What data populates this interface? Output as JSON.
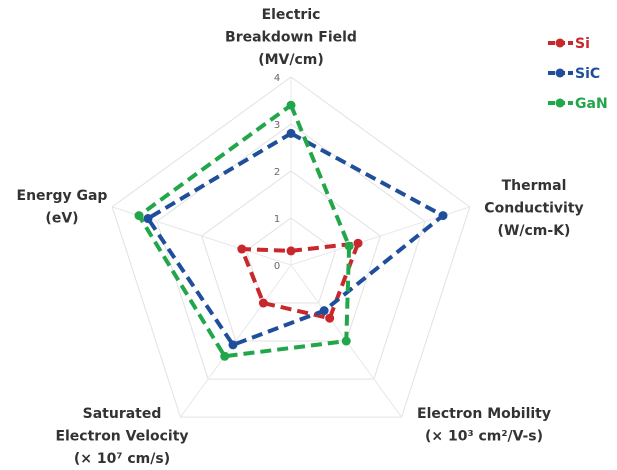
{
  "chart_data": {
    "type": "radar",
    "axes": [
      {
        "label": [
          "Electric",
          "Breakdown Field",
          "(MV/cm)"
        ]
      },
      {
        "label": [
          "Thermal",
          "Conductivity",
          "(W/cm-K)"
        ]
      },
      {
        "label": [
          "Electron Mobility",
          "(× 10³ cm²/V-s)"
        ]
      },
      {
        "label": [
          "Saturated",
          "Electron Velocity",
          "(× 10⁷ cm/s)"
        ]
      },
      {
        "label": [
          "Energy Gap",
          "(eV)"
        ]
      }
    ],
    "rlim": [
      0,
      4
    ],
    "ticks": [
      "0",
      "1",
      "2",
      "3",
      "4"
    ],
    "grid": true,
    "legend_position": "top-right",
    "line_style": "dashed with markers",
    "series": [
      {
        "name": "Si",
        "color": "#c8282c",
        "values": [
          0.3,
          1.5,
          1.4,
          1.0,
          1.1
        ]
      },
      {
        "name": "SiC",
        "color": "#1f4f9c",
        "values": [
          2.8,
          3.4,
          1.2,
          2.1,
          3.2
        ]
      },
      {
        "name": "GaN",
        "color": "#22a64a",
        "values": [
          3.4,
          1.3,
          2.0,
          2.4,
          3.4
        ]
      }
    ]
  }
}
